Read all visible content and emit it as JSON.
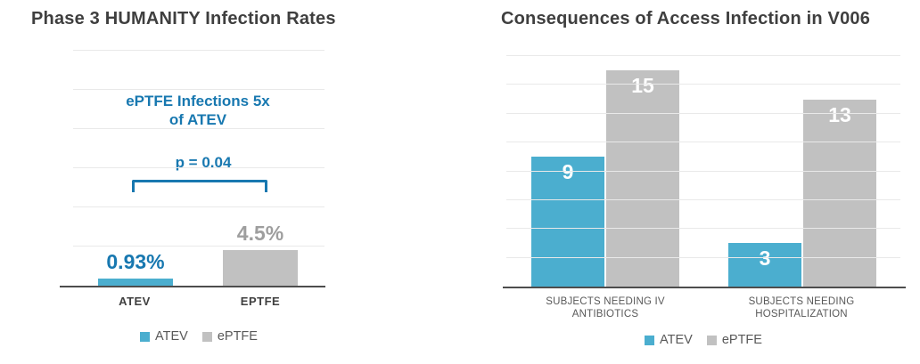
{
  "colors": {
    "atev_teal": "#4BAECF",
    "eptfe_gray": "#C1C1C1",
    "accent_blue": "#1878B0",
    "title_text": "#3F3F3F",
    "axis_label_text": "#404040",
    "category_text": "#595959",
    "gray_value_text": "#9E9E9E",
    "gridline": "#E9E9E9",
    "axis_line": "#4D4D4D",
    "bar_value_text": "#FFFFFF"
  },
  "chart_data": [
    {
      "id": "infection-rates",
      "type": "bar",
      "title": "Phase 3 HUMANITY Infection Rates",
      "categories": [
        "ATEV",
        "EPTFE"
      ],
      "values": [
        0.93,
        4.5
      ],
      "value_labels": [
        "0.93%",
        "4.5%"
      ],
      "bar_colors": [
        "#4BAECF",
        "#C1C1C1"
      ],
      "ylim": [
        0,
        30
      ],
      "gridline_step": 5,
      "grid": true,
      "legend_position": "bottom",
      "annotation": {
        "line1": "ePTFE Infections 5x",
        "line2": "of ATEV",
        "p_label": "p = 0.04"
      },
      "legend": [
        {
          "label": "ATEV",
          "color": "#4BAECF"
        },
        {
          "label": "ePTFE",
          "color": "#C1C1C1"
        }
      ],
      "xlabel": "",
      "ylabel": ""
    },
    {
      "id": "access-infection-consequences",
      "type": "bar",
      "title": "Consequences of Access Infection in V006",
      "categories": [
        "SUBJECTS NEEDING IV ANTIBIOTICS",
        "SUBJECTS NEEDING HOSPITALIZATION"
      ],
      "series": [
        {
          "name": "ATEV",
          "color": "#4BAECF",
          "values": [
            9,
            3
          ]
        },
        {
          "name": "ePTFE",
          "color": "#C1C1C1",
          "values": [
            15,
            13
          ]
        }
      ],
      "ylim": [
        0,
        16
      ],
      "gridline_step": 2,
      "grid": true,
      "legend_position": "bottom",
      "legend": [
        {
          "label": "ATEV",
          "color": "#4BAECF"
        },
        {
          "label": "ePTFE",
          "color": "#C1C1C1"
        }
      ],
      "xlabel": "",
      "ylabel": ""
    }
  ]
}
